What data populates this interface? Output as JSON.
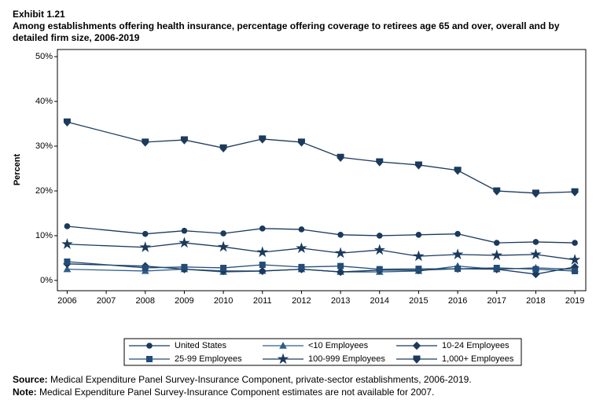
{
  "chart_data": {
    "type": "line",
    "exhibit": "Exhibit 1.21",
    "title": "Among establishments offering health insurance, percentage offering coverage to retirees age 65 and over, overall and by detailed firm size, 2006-2019",
    "ylabel": "Percent",
    "x": [
      2006,
      2008,
      2009,
      2010,
      2011,
      2012,
      2013,
      2014,
      2015,
      2016,
      2017,
      2018,
      2019
    ],
    "xlim": [
      2005.75,
      2019.28
    ],
    "xticks": [
      2006,
      2007,
      2008,
      2009,
      2010,
      2011,
      2012,
      2013,
      2014,
      2015,
      2016,
      2017,
      2018,
      2019
    ],
    "ylim": [
      -2.3,
      51.6
    ],
    "yticks": [
      {
        "value": 0,
        "label": "0%"
      },
      {
        "value": 10,
        "label": "10%"
      },
      {
        "value": 20,
        "label": "20%"
      },
      {
        "value": 30,
        "label": "30%"
      },
      {
        "value": 40,
        "label": "40%"
      },
      {
        "value": 50,
        "label": "50%"
      }
    ],
    "grid": false,
    "series": [
      {
        "name": "United States",
        "color": "#1b3a5c",
        "marker": "circle",
        "values": [
          12.1,
          10.4,
          11.1,
          10.5,
          11.6,
          11.4,
          10.2,
          10.0,
          10.2,
          10.4,
          8.4,
          8.6,
          8.4
        ]
      },
      {
        "name": "<10 Employees",
        "color": "#2e5f8a",
        "marker": "triangle",
        "values": [
          2.5,
          2.1,
          2.5,
          1.9,
          2.1,
          2.5,
          1.9,
          1.9,
          2.1,
          3.2,
          2.5,
          2.8,
          2.5
        ]
      },
      {
        "name": "10-24 Employees",
        "color": "#1b3a5c",
        "marker": "diamond",
        "values": [
          3.7,
          3.2,
          2.5,
          2.1,
          2.1,
          2.5,
          1.9,
          2.3,
          2.3,
          2.6,
          2.5,
          1.4,
          3.0
        ]
      },
      {
        "name": "25-99 Employees",
        "color": "#234d78",
        "marker": "square",
        "values": [
          4.2,
          2.8,
          3.0,
          2.8,
          3.5,
          3.0,
          3.2,
          2.5,
          2.6,
          2.6,
          2.8,
          2.5,
          2.1
        ]
      },
      {
        "name": "100-999 Employees",
        "color": "#1b3a5c",
        "marker": "star",
        "values": [
          8.1,
          7.4,
          8.4,
          7.5,
          6.3,
          7.2,
          6.1,
          6.8,
          5.4,
          5.8,
          5.6,
          5.8,
          4.6
        ]
      },
      {
        "name": "1,000+ Employees",
        "color": "#1b3a5c",
        "marker": "shield",
        "values": [
          35.4,
          30.9,
          31.4,
          29.6,
          31.6,
          30.9,
          27.5,
          26.5,
          25.8,
          24.6,
          20.0,
          19.5,
          19.8
        ]
      }
    ],
    "notes": [
      {
        "label": "Source:",
        "text": "Medical Expenditure Panel Survey-Insurance Component, private-sector establishments, 2006-2019."
      },
      {
        "label": "Note:",
        "text": "Medical Expenditure Panel Survey-Insurance Component estimates are not available for 2007."
      }
    ]
  }
}
